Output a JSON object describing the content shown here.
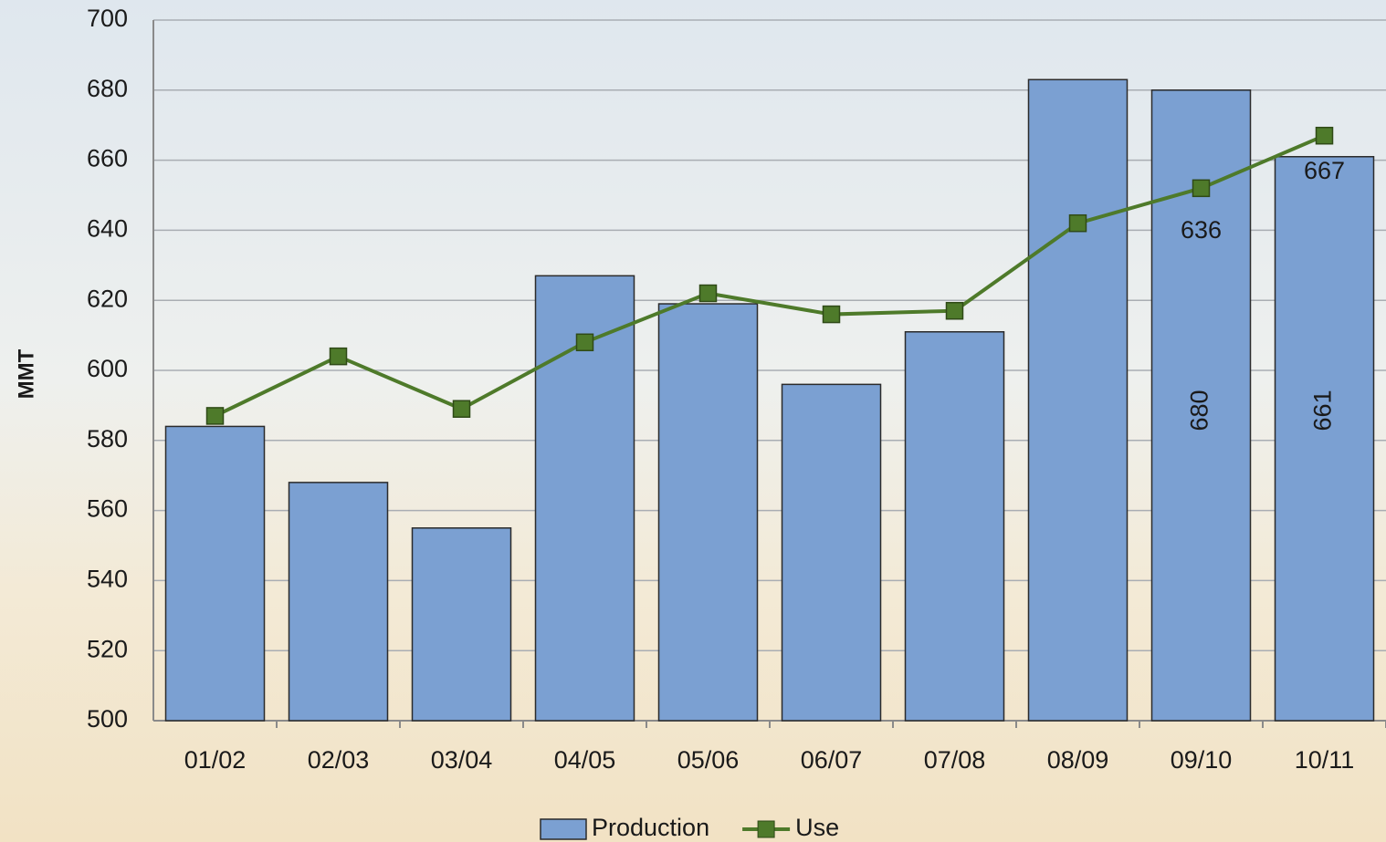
{
  "chart_data": {
    "type": "bar_line",
    "y_label": "MMT",
    "categories": [
      "01/02",
      "02/03",
      "03/04",
      "04/05",
      "05/06",
      "06/07",
      "07/08",
      "08/09",
      "09/10",
      "10/11"
    ],
    "series": [
      {
        "name": "Production",
        "type": "bar",
        "color": "#7ba0d2",
        "values": [
          584,
          568,
          555,
          627,
          619,
          596,
          611,
          683,
          680,
          661
        ],
        "value_labels": [
          null,
          null,
          null,
          null,
          null,
          null,
          null,
          null,
          "680",
          "661"
        ]
      },
      {
        "name": "Use",
        "type": "line",
        "color": "#4e7a2a",
        "values": [
          587,
          604,
          589,
          608,
          622,
          616,
          617,
          642,
          652,
          667
        ],
        "value_labels": [
          null,
          null,
          null,
          null,
          null,
          null,
          null,
          null,
          null,
          "667"
        ]
      }
    ],
    "annotations": [
      "636"
    ],
    "ylim": [
      500,
      700
    ],
    "yticks": [
      500,
      520,
      540,
      560,
      580,
      600,
      620,
      640,
      660,
      680,
      700
    ],
    "grid": true,
    "legend": "bottom"
  }
}
